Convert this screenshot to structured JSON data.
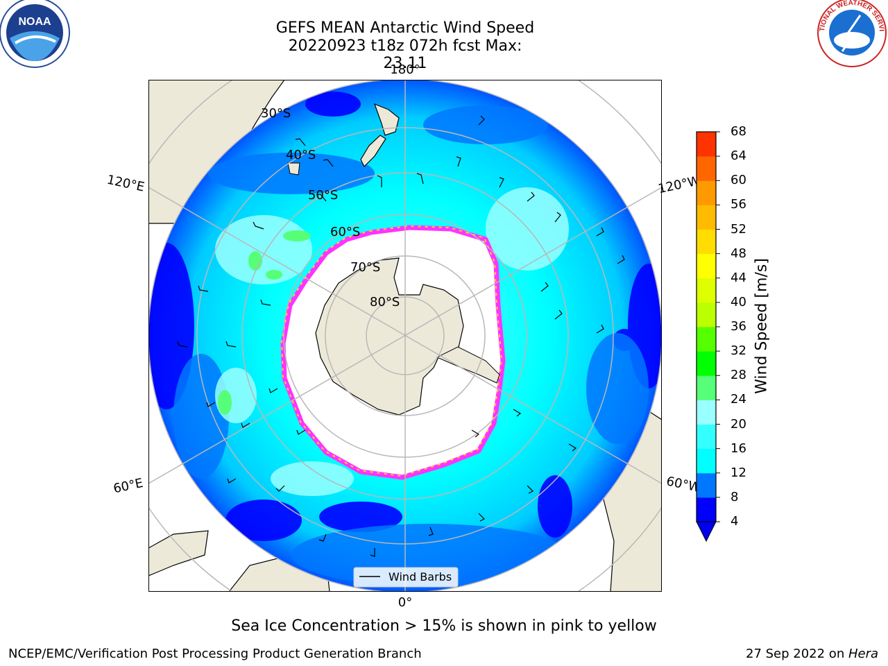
{
  "title": {
    "line1": "GEFS MEAN Antarctic Wind Speed",
    "line2": "20220923 t18z 072h fcst   Max: 23.11"
  },
  "map": {
    "projection": "south-polar-stereographic",
    "longitude_labels": [
      "180°",
      "120°E",
      "120°W",
      "60°E",
      "60°W",
      "0°"
    ],
    "latitude_labels": [
      "30°S",
      "40°S",
      "50°S",
      "60°S",
      "70°S",
      "80°S"
    ],
    "legend_label": "Wind Barbs",
    "colors": {
      "land": "#ede9d9",
      "ice_free_ocean_fill": "#00ffff",
      "grid": "#b8b8b8",
      "sea_ice_edge_pink": "#ff33ff",
      "sea_ice_edge_yellow": "#ffcc33"
    }
  },
  "colorbar": {
    "label": "Wind Speed [m/s]",
    "ticks": [
      "4",
      "8",
      "12",
      "16",
      "20",
      "24",
      "28",
      "32",
      "36",
      "40",
      "44",
      "48",
      "52",
      "56",
      "60",
      "64",
      "68"
    ],
    "colors": [
      "#0000ff",
      "#0077ff",
      "#00ffff",
      "#33ffff",
      "#99ffff",
      "#55ff77",
      "#00ff00",
      "#55ff00",
      "#bbff00",
      "#ddff00",
      "#ffff00",
      "#ffdd00",
      "#ffbb00",
      "#ff9900",
      "#ff6600",
      "#ff3300",
      "#ff0000"
    ],
    "extend_min_color": "#0000ee"
  },
  "caption": "Sea Ice Concentration > 15% is shown in pink to yellow",
  "footer": {
    "left": "NCEP/EMC/Verification Post Processing Product Generation Branch",
    "right_date": "27 Sep 2022 on ",
    "right_host": "Hera"
  },
  "logos": {
    "left": {
      "icon": "noaa-logo",
      "text": "NOAA"
    },
    "right": {
      "icon": "nws-logo",
      "text": "NATIONAL WEATHER SERVICE"
    }
  }
}
